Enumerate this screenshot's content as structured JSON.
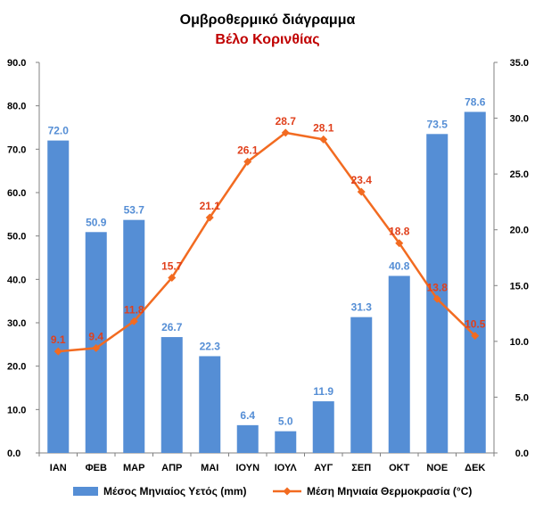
{
  "chart_data": {
    "type": "bar+line",
    "title": "Ομβροθερμικό διάγραμμα",
    "subtitle": "Βέλο Κορινθίας",
    "categories": [
      "ΙΑΝ",
      "ΦΕΒ",
      "ΜΑΡ",
      "ΑΠΡ",
      "ΜΑΙ",
      "ΙΟΥΝ",
      "ΙΟΥΛ",
      "ΑΥΓ",
      "ΣΕΠ",
      "ΟΚΤ",
      "ΝΟΕ",
      "ΔΕΚ"
    ],
    "series": [
      {
        "name": "Μέσος Μηνιαίος Υετός (mm)",
        "type": "bar",
        "axis": "left",
        "color": "#558ED5",
        "values": [
          72.0,
          50.9,
          53.7,
          26.7,
          22.3,
          6.4,
          5.0,
          11.9,
          31.3,
          40.8,
          73.5,
          78.6
        ],
        "labels": [
          "72.0",
          "50.9",
          "53.7",
          "26.7",
          "22.3",
          "6.4",
          "5.0",
          "11.9",
          "31.3",
          "40.8",
          "73.5",
          "78.6"
        ]
      },
      {
        "name": "Μέση Μηνιαία Θερμοκρασία (°C)",
        "type": "line",
        "axis": "right",
        "color": "#F26B21",
        "label_color": "#E0401C",
        "values": [
          9.1,
          9.4,
          11.8,
          15.7,
          21.1,
          26.1,
          28.7,
          28.1,
          23.4,
          18.8,
          13.8,
          10.5
        ],
        "labels": [
          "9.1",
          "9.4",
          "11.8",
          "15.7",
          "21.1",
          "26.1",
          "28.7",
          "28.1",
          "23.4",
          "18.8",
          "13.8",
          "10.5"
        ]
      }
    ],
    "y_left": {
      "min": 0,
      "max": 90,
      "ticks": [
        0,
        10,
        20,
        30,
        40,
        50,
        60,
        70,
        80,
        90
      ],
      "tick_labels": [
        "0.0",
        "10.0",
        "20.0",
        "30.0",
        "40.0",
        "50.0",
        "60.0",
        "70.0",
        "80.0",
        "90.0"
      ]
    },
    "y_right": {
      "min": 0,
      "max": 35,
      "ticks": [
        0,
        5,
        10,
        15,
        20,
        25,
        30,
        35
      ],
      "tick_labels": [
        "0.0",
        "5.0",
        "10.0",
        "15.0",
        "20.0",
        "25.0",
        "30.0",
        "35.0"
      ]
    },
    "grid": false,
    "legend": "bottom",
    "title_color": "#000000",
    "subtitle_color": "#C00000"
  }
}
